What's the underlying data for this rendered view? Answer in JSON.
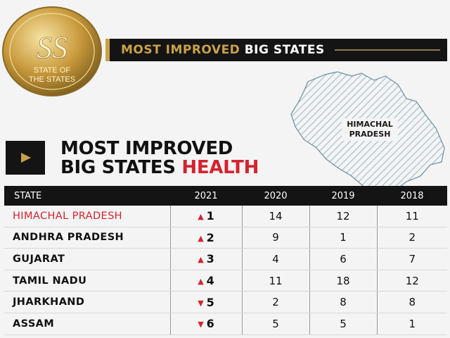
{
  "banner": {
    "title_gold": "MOST IMPROVED",
    "title_white": "BIG STATES",
    "accent_color": "#c8a24a",
    "background_color": "#141414"
  },
  "logo": {
    "monogram": "SS",
    "text_line1": "STATE OF",
    "text_line2": "THE STATES"
  },
  "map": {
    "label_line1": "HIMACHAL",
    "label_line2": "PRADESH"
  },
  "section": {
    "headline_line1": "MOST IMPROVED",
    "headline_line2_black": "BIG STATES",
    "headline_line2_red": "HEALTH",
    "red_color": "#d4232f"
  },
  "table": {
    "headers": [
      "STATE",
      "2021",
      "2020",
      "2019",
      "2018"
    ],
    "rows": [
      {
        "state": "HIMACHAL PRADESH",
        "trend": "up",
        "arrow": "▲",
        "y2021": "1",
        "y2020": "14",
        "y2019": "12",
        "y2018": "11"
      },
      {
        "state": "ANDHRA PRADESH",
        "trend": "up",
        "arrow": "▲",
        "y2021": "2",
        "y2020": "9",
        "y2019": "1",
        "y2018": "2"
      },
      {
        "state": "GUJARAT",
        "trend": "up",
        "arrow": "▲",
        "y2021": "3",
        "y2020": "4",
        "y2019": "6",
        "y2018": "7"
      },
      {
        "state": "TAMIL NADU",
        "trend": "up",
        "arrow": "▲",
        "y2021": "4",
        "y2020": "11",
        "y2019": "18",
        "y2018": "12"
      },
      {
        "state": "JHARKHAND",
        "trend": "down",
        "arrow": "▼",
        "y2021": "5",
        "y2020": "2",
        "y2019": "8",
        "y2018": "8"
      },
      {
        "state": "ASSAM",
        "trend": "down",
        "arrow": "▼",
        "y2021": "6",
        "y2020": "5",
        "y2019": "5",
        "y2018": "1"
      }
    ]
  }
}
